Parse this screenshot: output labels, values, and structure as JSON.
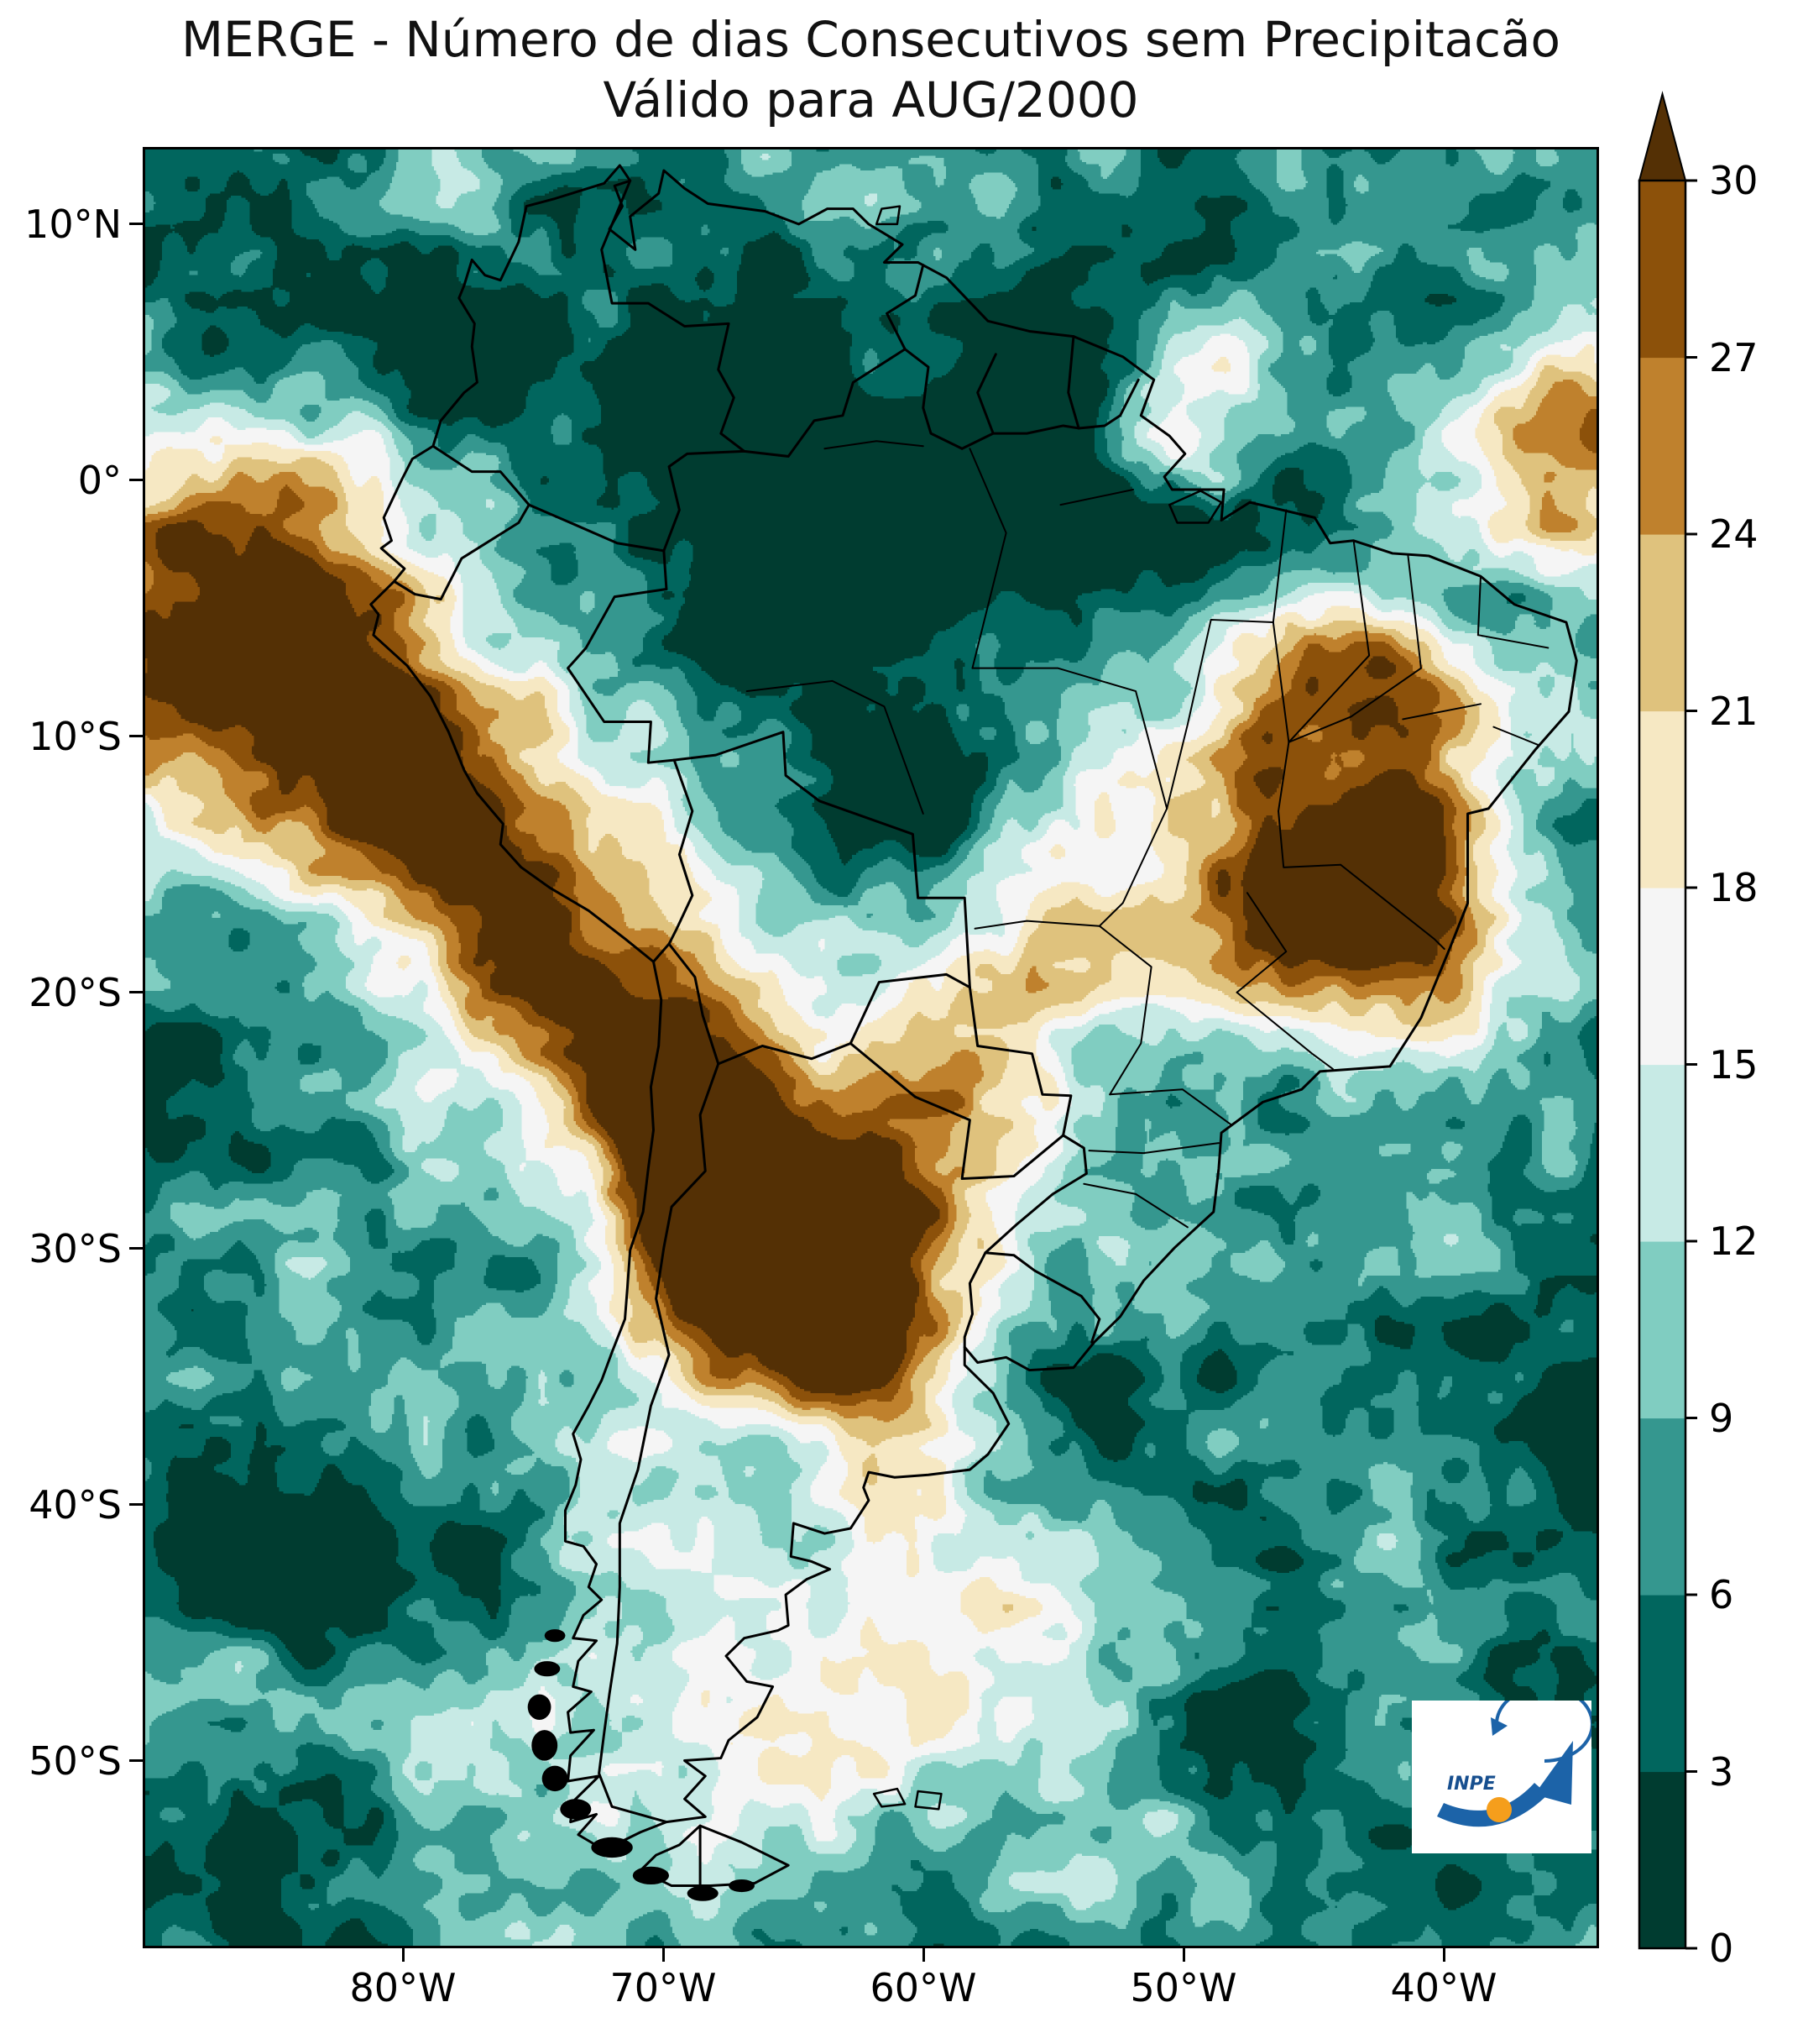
{
  "title": {
    "line1": "MERGE - Número de dias Consecutivos sem Precipitacão",
    "line2": "Válido para AUG/2000"
  },
  "axes": {
    "y_tick_labels": [
      "10°N",
      "0°",
      "10°S",
      "20°S",
      "30°S",
      "40°S",
      "50°S"
    ],
    "x_tick_labels": [
      "80°W",
      "70°W",
      "60°W",
      "50°W",
      "40°W"
    ]
  },
  "colorbar": {
    "tick_labels_top_to_bottom": [
      "30",
      "27",
      "24",
      "21",
      "18",
      "15",
      "12",
      "9",
      "6",
      "3",
      "0"
    ],
    "segment_colors_bottom_to_top": [
      "#003c30",
      "#01665e",
      "#35978f",
      "#80cdc1",
      "#c7eae5",
      "#f5f5f5",
      "#f6e8c3",
      "#dfc27d",
      "#bf812d",
      "#8c510a"
    ],
    "extend_max_color": "#543005"
  },
  "logo": {
    "text": "INPE"
  },
  "chart_data": {
    "type": "heatmap",
    "title": "MERGE - Número de dias Consecutivos sem Precipitacão",
    "subtitle": "Válido para AUG/2000",
    "variable": "Número de dias consecutivos sem precipitação (dias)",
    "region": "South America",
    "projection": "lat/lon (plate carrée)",
    "x_ticks": [
      "80°W",
      "70°W",
      "60°W",
      "50°W",
      "40°W"
    ],
    "y_ticks": [
      "10°N",
      "0°",
      "10°S",
      "20°S",
      "30°S",
      "40°S",
      "50°S"
    ],
    "colorbar_levels": [
      0,
      3,
      6,
      9,
      12,
      15,
      18,
      21,
      24,
      27,
      30
    ],
    "colorbar_colors_low_to_high": [
      "#003c30",
      "#01665e",
      "#35978f",
      "#80cdc1",
      "#c7eae5",
      "#f5f5f5",
      "#f6e8c3",
      "#dfc27d",
      "#bf812d",
      "#8c510a"
    ],
    "colorbar_extend_max_color": "#543005",
    "legend_position": "right",
    "grid": false,
    "overlays": [
      "country borders",
      "Brazilian state borders",
      "INPE logo"
    ]
  }
}
